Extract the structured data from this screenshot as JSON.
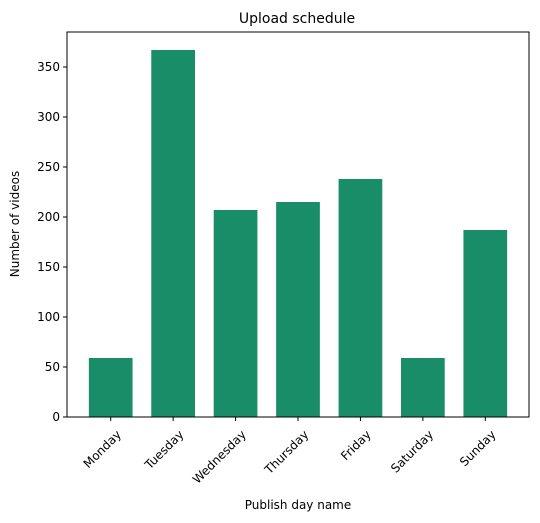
{
  "chart_data": {
    "type": "bar",
    "title": "Upload schedule",
    "xlabel": "Publish day name",
    "ylabel": "Number of videos",
    "categories": [
      "Monday",
      "Tuesday",
      "Wednesday",
      "Thursday",
      "Friday",
      "Saturday",
      "Sunday"
    ],
    "values": [
      59,
      367,
      207,
      215,
      238,
      59,
      187
    ],
    "ylim": [
      0,
      385
    ],
    "yticks": [
      0,
      50,
      100,
      150,
      200,
      250,
      300,
      350
    ],
    "ytick_labels": [
      "0",
      "50",
      "100",
      "150",
      "200",
      "250",
      "300",
      "350"
    ],
    "bar_color": "#198c68",
    "grid": false,
    "xtick_rotation_deg": 45
  }
}
